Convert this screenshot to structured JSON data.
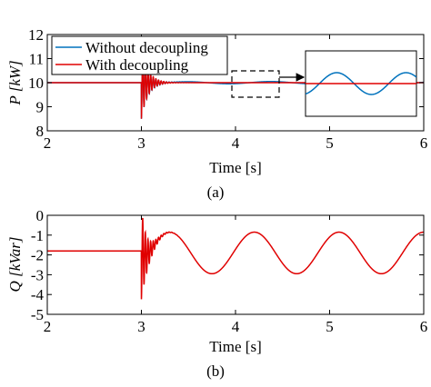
{
  "colors": {
    "without": "#0072BD",
    "with": "#E00000"
  },
  "chart_data": [
    {
      "panel": "(a)",
      "type": "line",
      "xlabel": "Time [s]",
      "ylabel": "P [kW]",
      "xlim": [
        2,
        6
      ],
      "ylim": [
        8,
        12
      ],
      "x_ticks": [
        "2",
        "3",
        "4",
        "5",
        "6"
      ],
      "y_ticks": [
        "8",
        "9",
        "10",
        "11",
        "12"
      ],
      "legend": {
        "placement": "top-left"
      },
      "series": [
        {
          "name": "Without decoupling",
          "color_key": "without",
          "steady_value": 10.0,
          "disturbance_time": 3.0,
          "min_after_disturbance": 8.5,
          "max_after_disturbance": 10.9,
          "settled_ripple_amplitude": 0.05,
          "oscillation_period": 0.9
        },
        {
          "name": "With decoupling",
          "color_key": "with",
          "steady_value": 10.0,
          "disturbance_time": 3.0,
          "min_after_disturbance": 8.5,
          "max_after_disturbance": 10.9,
          "settled_ripple_amplitude": 0.0
        }
      ],
      "inset": {
        "zoom_x": [
          3.95,
          4.45
        ]
      }
    },
    {
      "panel": "(b)",
      "type": "line",
      "xlabel": "Time [s]",
      "ylabel": "Q [kVar]",
      "xlim": [
        2,
        6
      ],
      "ylim": [
        -5,
        0
      ],
      "x_ticks": [
        "2",
        "3",
        "4",
        "5",
        "6"
      ],
      "y_ticks": [
        "0",
        "-1",
        "-2",
        "-3",
        "-4",
        "-5"
      ],
      "series": [
        {
          "name": "With decoupling",
          "color_key": "with",
          "initial_value": -1.8,
          "disturbance_time": 3.0,
          "min_after_disturbance": -4.4,
          "oscillation_center": -1.9,
          "oscillation_amplitude": 1.05,
          "oscillation_period": 0.9,
          "first_peak_time": 3.3
        }
      ]
    }
  ]
}
